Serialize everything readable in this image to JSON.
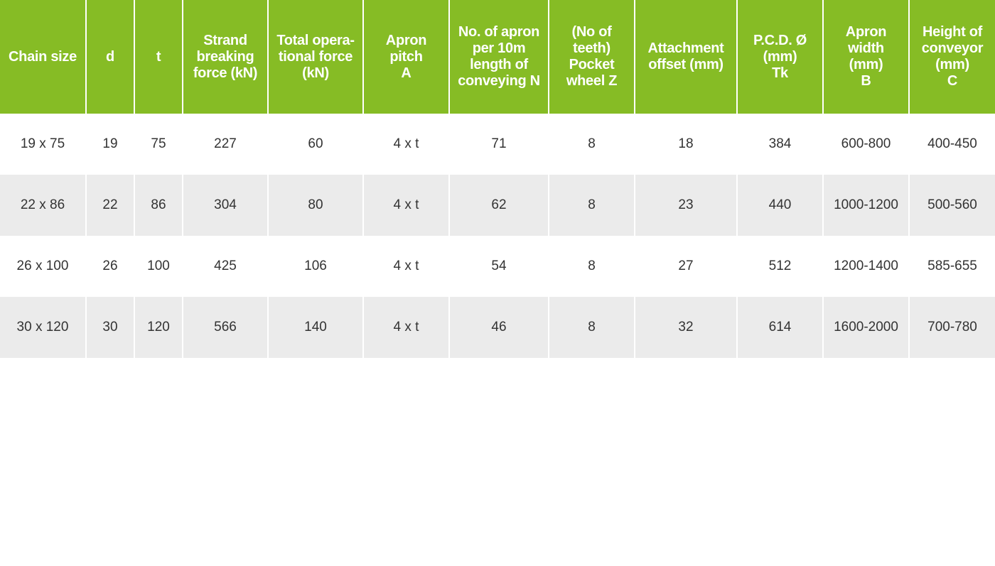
{
  "table": {
    "headers": [
      "Chain size",
      "d",
      "t",
      "Strand\nbreaking\nforce (kN)",
      "Total opera-\ntional force\n(kN)",
      "Apron\npitch\nA",
      "No. of apron\nper 10m\nlength of\nconveying N",
      "(No of\nteeth)\nPocket\nwheel Z",
      "Attachment\noffset (mm)",
      "P.C.D. Ø\n(mm)\nTk",
      "Apron\nwidth\n(mm)\nB",
      "Height of\nconveyor\n(mm)\nC"
    ],
    "rows": [
      [
        "19 x 75",
        "19",
        "75",
        "227",
        "60",
        "4 x t",
        "71",
        "8",
        "18",
        "384",
        "600-800",
        "400-450"
      ],
      [
        "22 x 86",
        "22",
        "86",
        "304",
        "80",
        "4 x t",
        "62",
        "8",
        "23",
        "440",
        "1000-1200",
        "500-560"
      ],
      [
        "26 x 100",
        "26",
        "100",
        "425",
        "106",
        "4 x t",
        "54",
        "8",
        "27",
        "512",
        "1200-1400",
        "585-655"
      ],
      [
        "30 x 120",
        "30",
        "120",
        "566",
        "140",
        "4 x t",
        "46",
        "8",
        "32",
        "614",
        "1600-2000",
        "700-780"
      ]
    ]
  },
  "colors": {
    "header_bg": "#86bc25",
    "header_text": "#ffffff",
    "row_alt_bg": "#ebebeb",
    "body_text": "#333333"
  }
}
